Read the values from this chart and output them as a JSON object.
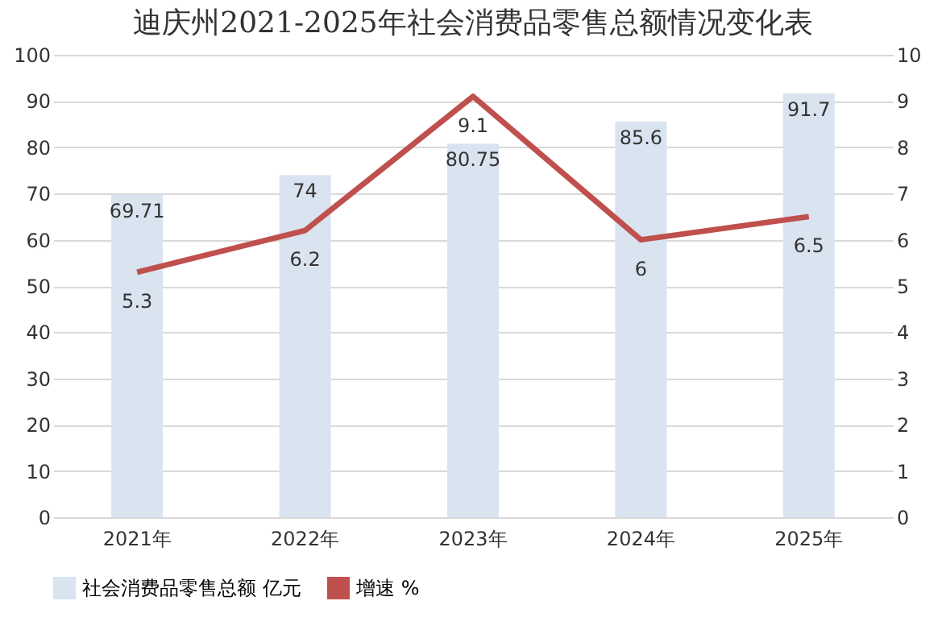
{
  "chart_data": {
    "type": "bar",
    "title": "迪庆州2021-2025年社会消费品零售总额情况变化表",
    "categories": [
      "2021年",
      "2022年",
      "2023年",
      "2024年",
      "2025年"
    ],
    "series": [
      {
        "name": "社会消费品零售总额 亿元",
        "color": "#dae3f0",
        "values": [
          69.71,
          74,
          80.75,
          85.6,
          91.7
        ]
      },
      {
        "name": "增速 %",
        "type": "line",
        "axis": "y2",
        "color": "#c0504d",
        "values": [
          5.3,
          6.2,
          9.1,
          6,
          6.5
        ]
      }
    ],
    "ylim": [
      0,
      100
    ],
    "yticks": [
      0,
      10,
      20,
      30,
      40,
      50,
      60,
      70,
      80,
      90,
      100
    ],
    "y2lim": [
      0,
      10
    ],
    "y2ticks": [
      0,
      1,
      2,
      3,
      4,
      5,
      6,
      7,
      8,
      9,
      10
    ],
    "grid": "y",
    "legend": "bottom",
    "data_labels": true,
    "marker": "none",
    "line_style": "solid"
  }
}
